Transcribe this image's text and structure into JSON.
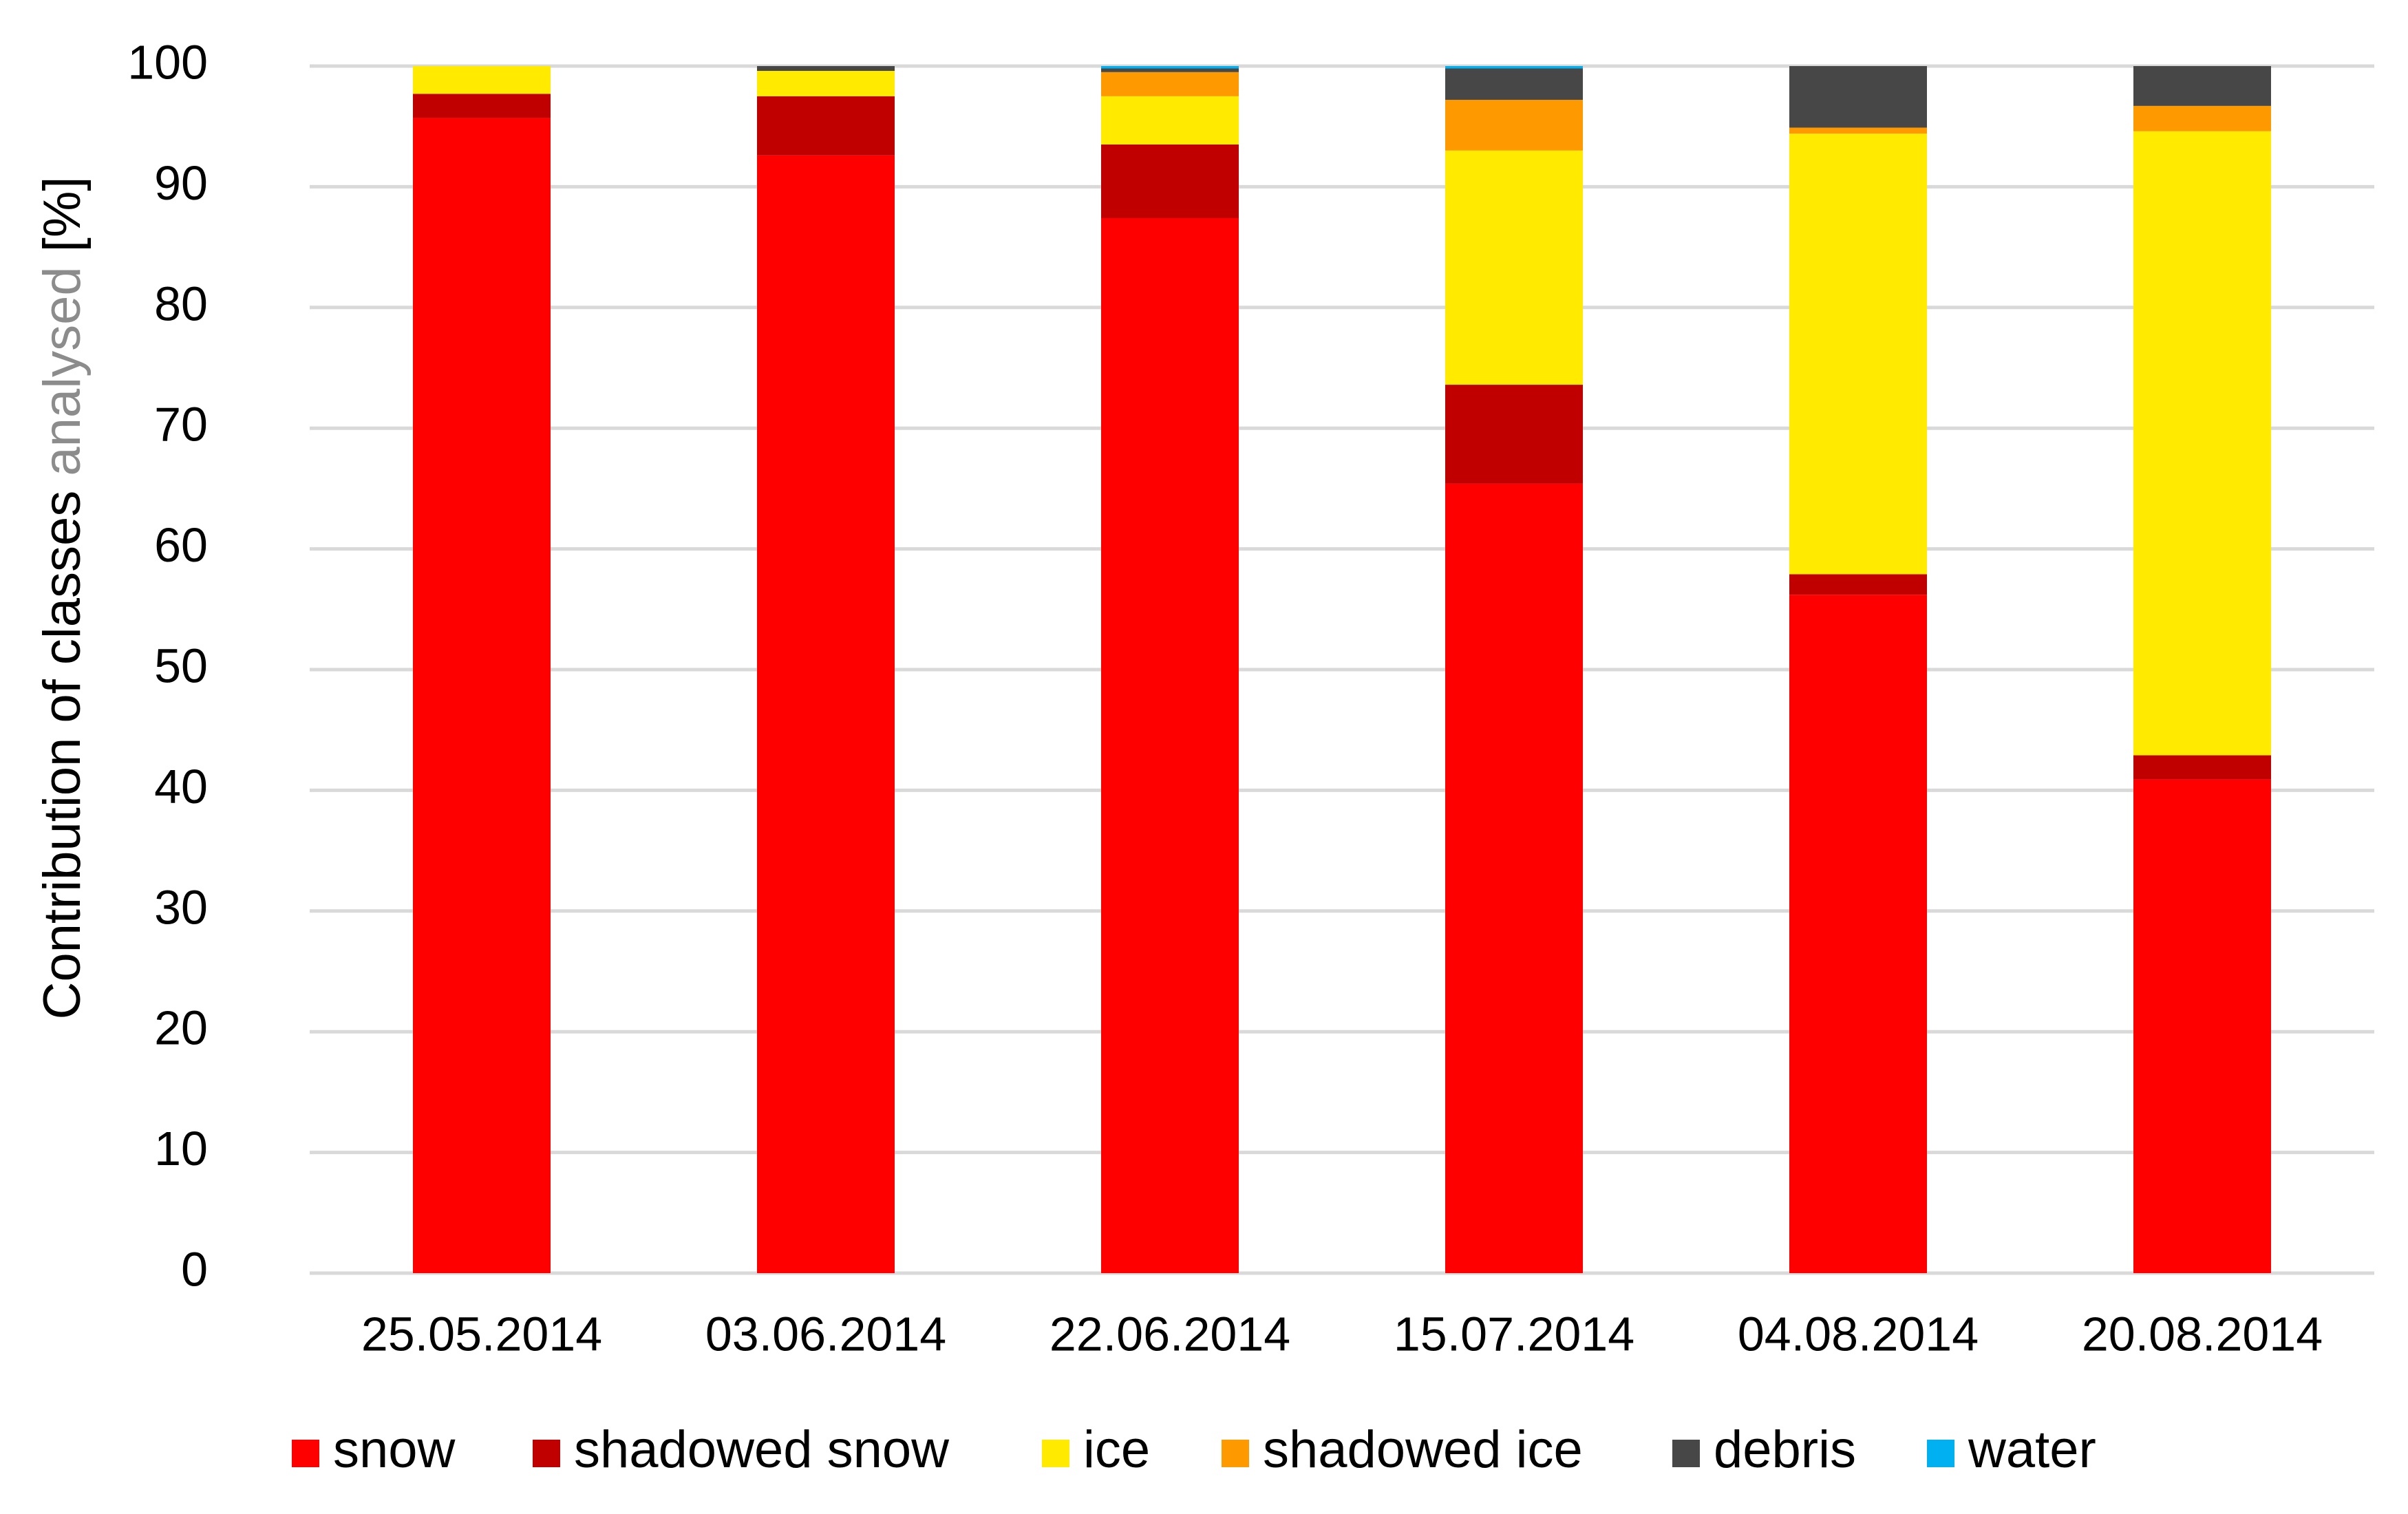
{
  "chart_data": {
    "type": "bar",
    "stacked": true,
    "title": "",
    "xlabel": "",
    "ylabel": {
      "part1": "Contribution of classes ",
      "part2": "analysed",
      "part3": " [%]",
      "part2_color": "#8c8c8c"
    },
    "ylim": [
      0,
      100
    ],
    "yticks": [
      0,
      10,
      20,
      30,
      40,
      50,
      60,
      70,
      80,
      90,
      100
    ],
    "grid": true,
    "legend_position": "bottom",
    "categories": [
      "25.05.2014",
      "03.06.2014",
      "22.06.2014",
      "15.07.2014",
      "04.08.2014",
      "20.08.2014"
    ],
    "series": [
      {
        "name": "snow",
        "color": "#ff0000",
        "values": [
          95.7,
          92.6,
          87.4,
          65.4,
          56.2,
          40.9
        ]
      },
      {
        "name": "shadowed snow",
        "color": "#c00000",
        "values": [
          2.0,
          4.9,
          6.1,
          8.2,
          1.7,
          2.0
        ]
      },
      {
        "name": "ice",
        "color": "#ffea00",
        "values": [
          2.3,
          2.1,
          4.0,
          19.4,
          36.5,
          51.7
        ]
      },
      {
        "name": "shadowed ice",
        "color": "#ff9900",
        "values": [
          0.0,
          0.0,
          2.0,
          4.2,
          0.5,
          2.1
        ]
      },
      {
        "name": "debris",
        "color": "#474747",
        "values": [
          0.0,
          0.4,
          0.3,
          2.6,
          5.1,
          3.3
        ]
      },
      {
        "name": "water",
        "color": "#00b0f0",
        "values": [
          0.0,
          0.0,
          0.2,
          0.2,
          0.0,
          0.0
        ]
      }
    ]
  }
}
